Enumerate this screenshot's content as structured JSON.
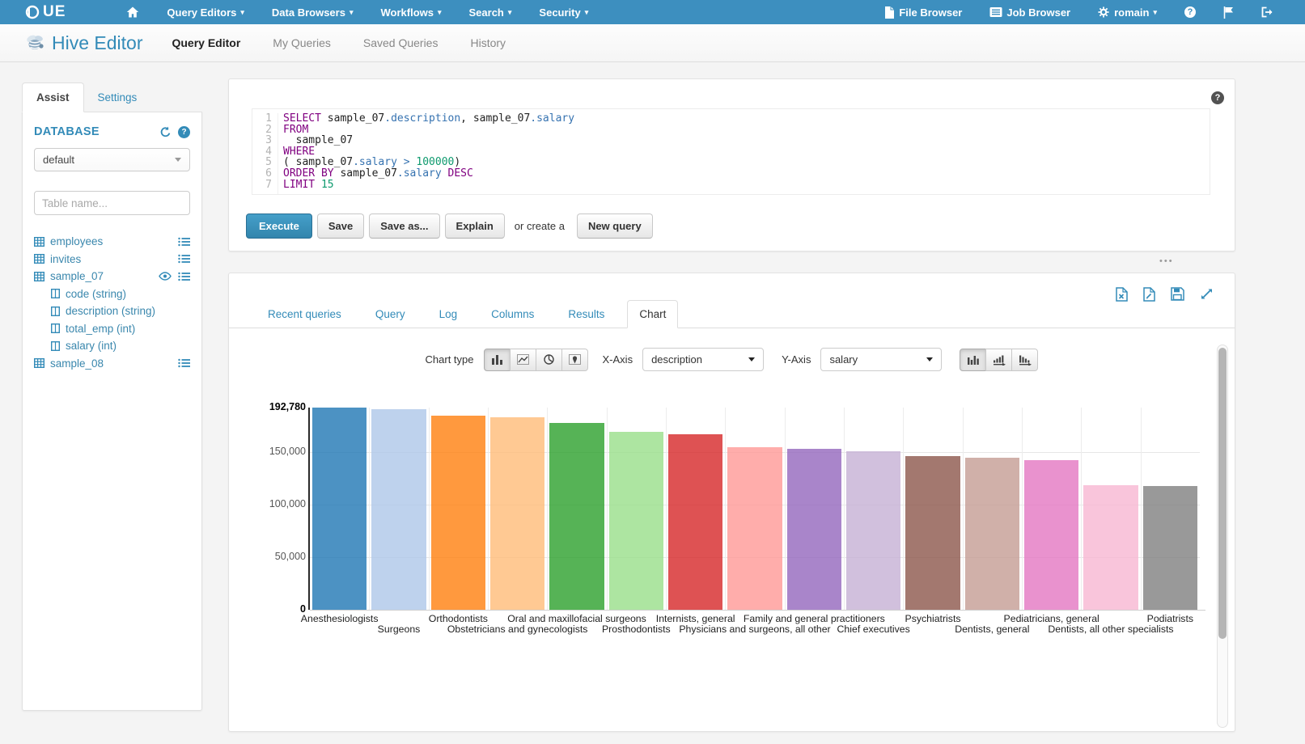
{
  "brand": {
    "logo_text": "UE",
    "accent_color": "#338bb8",
    "navbar_color": "#3d8fbf"
  },
  "topnav": {
    "items": [
      "Query Editors",
      "Data Browsers",
      "Workflows",
      "Search",
      "Security"
    ],
    "file_browser": "File Browser",
    "job_browser": "Job Browser",
    "user": "romain"
  },
  "header": {
    "title": "Hive Editor",
    "tabs": [
      "Query Editor",
      "My Queries",
      "Saved Queries",
      "History"
    ],
    "active_tab": "Query Editor"
  },
  "sidebar": {
    "assist_tab": "Assist",
    "settings_tab": "Settings",
    "database_label": "DATABASE",
    "database_value": "default",
    "table_filter_placeholder": "Table name...",
    "tables": [
      {
        "name": "employees"
      },
      {
        "name": "invites"
      },
      {
        "name": "sample_07",
        "columns": [
          "code (string)",
          "description (string)",
          "total_emp (int)",
          "salary (int)"
        ]
      },
      {
        "name": "sample_08"
      }
    ]
  },
  "editor": {
    "syntax_colors": {
      "kw": "#800080",
      "id": "#222222",
      "at": "#3572b0",
      "op": "#3572b0",
      "num": "#0e9a6e",
      "pl": "#222222"
    },
    "lines": [
      [
        {
          "t": "SELECT ",
          "c": "kw"
        },
        {
          "t": "sample_07",
          "c": "id"
        },
        {
          "t": ".description",
          "c": "at"
        },
        {
          "t": ", ",
          "c": "pl"
        },
        {
          "t": "sample_07",
          "c": "id"
        },
        {
          "t": ".salary",
          "c": "at"
        }
      ],
      [
        {
          "t": "FROM",
          "c": "kw"
        }
      ],
      [
        {
          "t": "  sample_07",
          "c": "id"
        }
      ],
      [
        {
          "t": "WHERE",
          "c": "kw"
        }
      ],
      [
        {
          "t": "( ",
          "c": "pl"
        },
        {
          "t": "sample_07",
          "c": "id"
        },
        {
          "t": ".salary",
          "c": "at"
        },
        {
          "t": " ",
          "c": "pl"
        },
        {
          "t": ">",
          "c": "op"
        },
        {
          "t": " ",
          "c": "pl"
        },
        {
          "t": "100000",
          "c": "num"
        },
        {
          "t": ")",
          "c": "pl"
        }
      ],
      [
        {
          "t": "ORDER BY ",
          "c": "kw"
        },
        {
          "t": "sample_07",
          "c": "id"
        },
        {
          "t": ".salary",
          "c": "at"
        },
        {
          "t": " ",
          "c": "pl"
        },
        {
          "t": "DESC",
          "c": "kw"
        }
      ],
      [
        {
          "t": "LIMIT ",
          "c": "kw"
        },
        {
          "t": "15",
          "c": "num"
        }
      ]
    ],
    "buttons": {
      "execute": "Execute",
      "save": "Save",
      "save_as": "Save as...",
      "explain": "Explain",
      "or_text": "or create a",
      "new_query": "New query"
    }
  },
  "results": {
    "tabs": [
      "Recent queries",
      "Query",
      "Log",
      "Columns",
      "Results",
      "Chart"
    ],
    "active_tab": "Chart",
    "controls": {
      "chart_type_label": "Chart type",
      "x_axis_label": "X-Axis",
      "x_axis_value": "description",
      "y_axis_label": "Y-Axis",
      "y_axis_value": "salary"
    }
  },
  "chart_data": {
    "type": "bar",
    "title": "",
    "xlabel": "description",
    "ylabel": "salary",
    "categories": [
      "Anesthesiologists",
      "Surgeons",
      "Orthodontists",
      "Obstetricians and gynecologists",
      "Oral and maxillofacial surgeons",
      "Prosthodontists",
      "Internists, general",
      "Physicians and surgeons, all other",
      "Family and general practitioners",
      "Chief executives",
      "Psychiatrists",
      "Dentists, general",
      "Pediatricians, general",
      "Dentists, all other specialists",
      "Podiatrists"
    ],
    "values": [
      192780,
      191410,
      185340,
      183600,
      178440,
      169360,
      167270,
      155150,
      153640,
      151370,
      146150,
      145210,
      142870,
      118480,
      118220
    ],
    "colors": [
      "#1f77b4",
      "#aec7e8",
      "#ff7f0e",
      "#ffbb78",
      "#2ca02c",
      "#98df8a",
      "#d62728",
      "#ff9896",
      "#9467bd",
      "#c5b0d5",
      "#8c564b",
      "#c49c94",
      "#e377c2",
      "#f7b6d2",
      "#7f7f7f"
    ],
    "bar_opacity": 0.8,
    "ylim": [
      0,
      192780
    ],
    "yticks": [
      {
        "v": 0,
        "label": "0",
        "bold": true
      },
      {
        "v": 50000,
        "label": "50,000"
      },
      {
        "v": 100000,
        "label": "100,000"
      },
      {
        "v": 150000,
        "label": "150,000"
      },
      {
        "v": 192780,
        "label": "192,780",
        "bold": true
      }
    ],
    "grid": true,
    "legend_position": "none",
    "x_label_stagger": true
  },
  "icons": {
    "caret-down-icon": "▾",
    "ellipsis-grip-icon": "•••",
    "question-icon": "?",
    "hue-logo": "circle-mark",
    "home-icon": "house",
    "file-icon": "document",
    "job-browser-icon": "list-box",
    "gear-icon": "cog",
    "flag-icon": "flag",
    "logout-icon": "door-arrow",
    "hive-logo-icon": "bee",
    "refresh-icon": "sync-arrows",
    "table-icon": "grid",
    "column-icon": "split-rect",
    "menu-icon": "list-lines",
    "eye-icon": "eye",
    "excel-export-icon": "xls-file",
    "doc-export-icon": "file-pen",
    "save-result-icon": "floppy",
    "expand-icon": "diagonal-arrows",
    "bar-chart-icon": "bars",
    "line-chart-icon": "polyline",
    "pie-chart-icon": "pie",
    "map-chart-icon": "marker-pin",
    "sort-none-icon": "bars",
    "sort-asc-icon": "bars-ascending-arrow",
    "sort-desc-icon": "bars-descending-arrow"
  }
}
